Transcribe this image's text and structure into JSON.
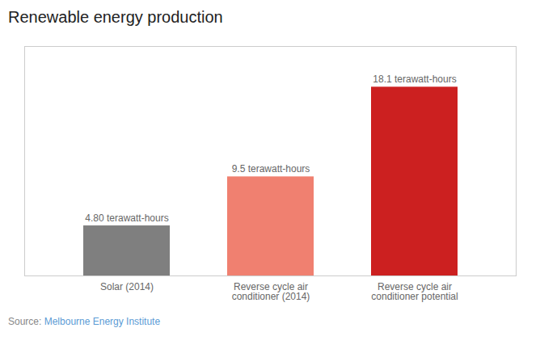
{
  "chart_data": {
    "type": "bar",
    "title": "Renewable energy production",
    "categories": [
      "Solar (2014)",
      "Reverse cycle air\nconditioner (2014)",
      "Reverse cycle air\nconditioner potential"
    ],
    "values": [
      4.8,
      9.5,
      18.1
    ],
    "value_labels": [
      "4.80 terawatt-hours",
      "9.5 terawatt-hours",
      "18.1 terawatt-hours"
    ],
    "data_labels": true,
    "colors": [
      "#7f7f7f",
      "#F08070",
      "#CC2020"
    ],
    "ylim": [
      0,
      22
    ],
    "tick_labels": "x",
    "grid": false,
    "annotations": [
      {
        "text": "Source: ",
        "color": "#888888"
      },
      {
        "text": "Melbourne Energy Institute",
        "color": "#5B9BD5"
      }
    ]
  }
}
